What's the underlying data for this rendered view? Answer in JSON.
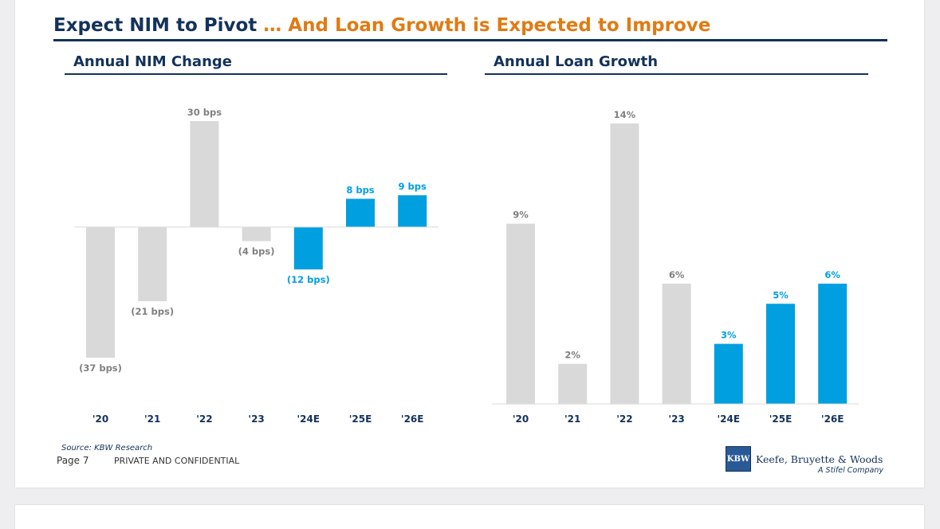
{
  "title": {
    "part1": "Expect NIM to Pivot",
    "part2": "… And Loan Growth is Expected to Improve"
  },
  "colors": {
    "navy": "#13325b",
    "orange": "#e07b14",
    "historical_bar": "#d9d9d9",
    "estimate_bar": "#009fe0",
    "historical_label": "#808080"
  },
  "chart_data": [
    {
      "type": "bar",
      "title": "Annual NIM Change",
      "categories": [
        "'20",
        "'21",
        "'22",
        "'23",
        "'24E",
        "'25E",
        "'26E"
      ],
      "values": [
        -37,
        -21,
        30,
        -4,
        -12,
        8,
        9
      ],
      "unit": "bps",
      "labels": [
        "(37 bps)",
        "(21 bps)",
        "30 bps",
        "(4 bps)",
        "(12 bps)",
        "8 bps",
        "9 bps"
      ],
      "estimate": [
        false,
        false,
        false,
        false,
        true,
        true,
        true
      ],
      "ylim": [
        -37,
        30
      ],
      "xlabel": "",
      "ylabel": "",
      "grid": false,
      "legend": "none"
    },
    {
      "type": "bar",
      "title": "Annual Loan Growth",
      "categories": [
        "'20",
        "'21",
        "'22",
        "'23",
        "'24E",
        "'25E",
        "'26E"
      ],
      "values": [
        9,
        2,
        14,
        6,
        3,
        5,
        6
      ],
      "unit": "%",
      "labels": [
        "9%",
        "2%",
        "14%",
        "6%",
        "3%",
        "5%",
        "6%"
      ],
      "estimate": [
        false,
        false,
        false,
        false,
        true,
        true,
        true
      ],
      "ylim": [
        0,
        14
      ],
      "xlabel": "",
      "ylabel": "",
      "grid": false,
      "legend": "none"
    }
  ],
  "footer": {
    "source": "Source: KBW Research",
    "page": "Page 7",
    "confidential": "PRIVATE AND CONFIDENTIAL"
  },
  "logo": {
    "mark": "KBW",
    "name": "Keefe, Bruyette & Woods",
    "tagline": "A Stifel Company"
  }
}
